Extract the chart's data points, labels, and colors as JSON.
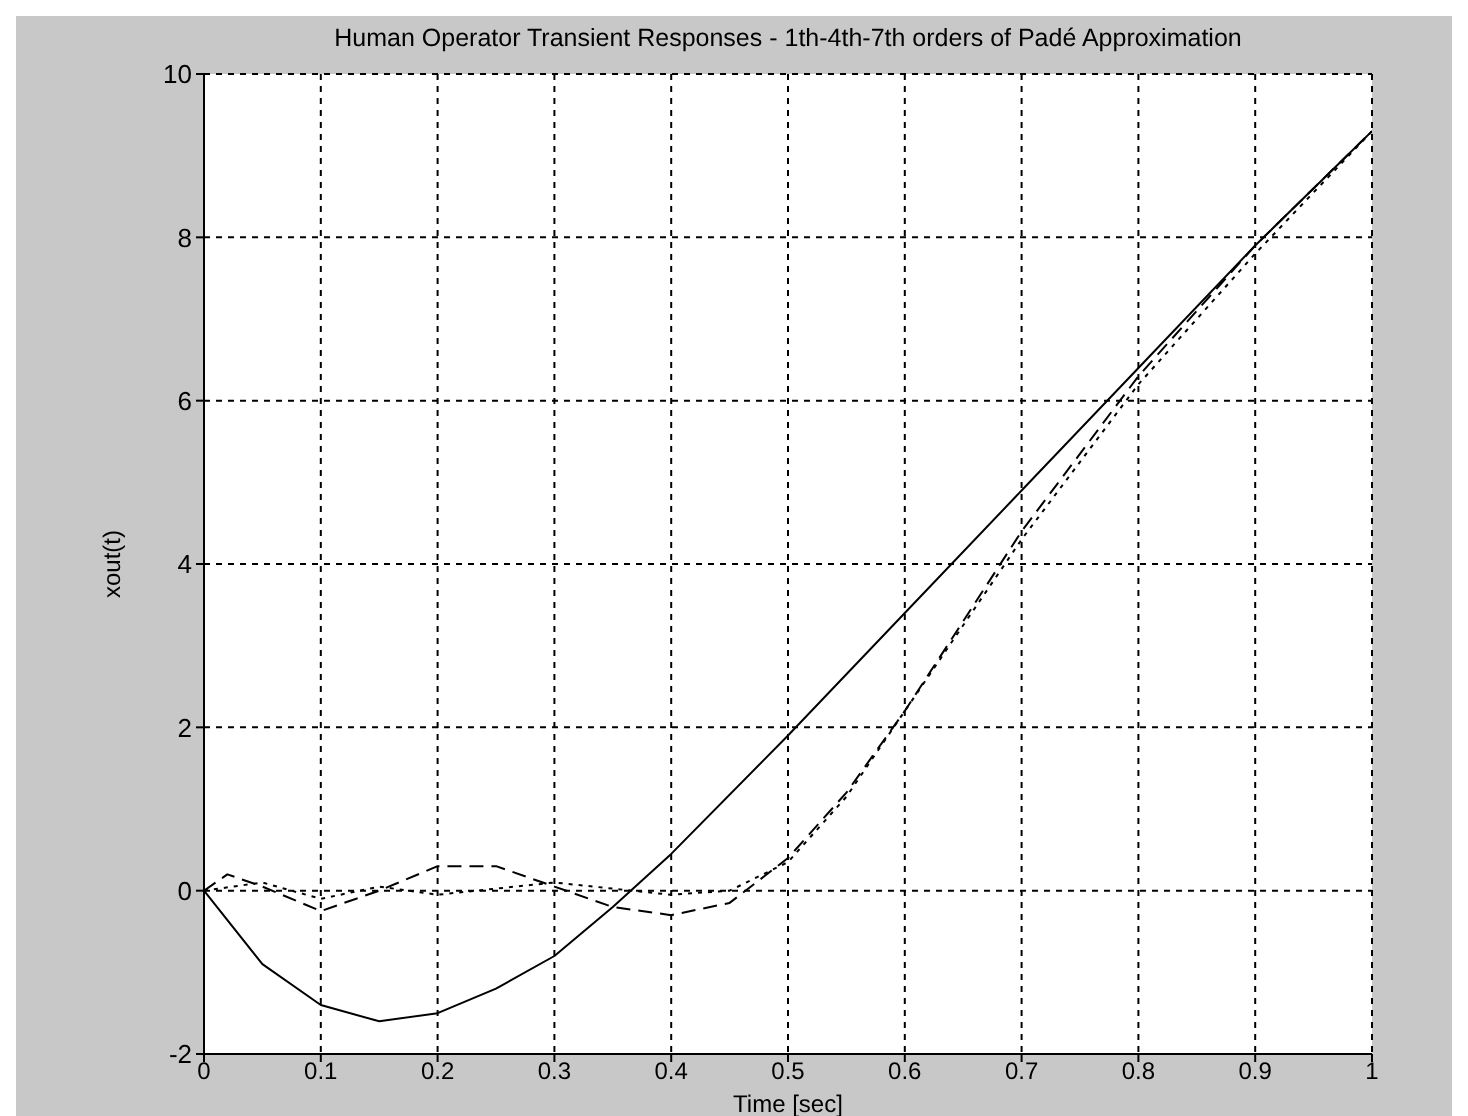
{
  "chart_data": {
    "type": "line",
    "title": "Human Operator Transient Responses - 1th-4th-7th orders of Padé Approximation",
    "xlabel": "Time [sec]",
    "ylabel": "xout(t)",
    "xlim": [
      0,
      1
    ],
    "ylim": [
      -2,
      10
    ],
    "xticks": [
      0,
      0.1,
      0.2,
      0.3,
      0.4,
      0.5,
      0.6,
      0.7,
      0.8,
      0.9,
      1
    ],
    "yticks": [
      -2,
      0,
      2,
      4,
      6,
      8,
      10
    ],
    "grid": true,
    "marker": "none",
    "series": [
      {
        "color": "#000000",
        "line_style": "solid",
        "x": [
          0,
          0.05,
          0.1,
          0.15,
          0.2,
          0.25,
          0.3,
          0.35,
          0.4,
          0.5,
          0.6,
          0.7,
          0.8,
          0.9,
          1
        ],
        "values": [
          0,
          -0.9,
          -1.4,
          -1.6,
          -1.5,
          -1.2,
          -0.8,
          -0.2,
          0.45,
          1.9,
          3.4,
          4.9,
          6.4,
          7.9,
          9.3
        ]
      },
      {
        "color": "#000000",
        "line_style": "dashed",
        "x": [
          0,
          0.02,
          0.05,
          0.1,
          0.15,
          0.2,
          0.25,
          0.3,
          0.35,
          0.4,
          0.45,
          0.5,
          0.55,
          0.6,
          0.7,
          0.8,
          0.9,
          1
        ],
        "values": [
          0,
          0.2,
          0.05,
          -0.25,
          0,
          0.3,
          0.3,
          0.05,
          -0.2,
          -0.3,
          -0.15,
          0.4,
          1.2,
          2.2,
          4.4,
          6.3,
          7.9,
          9.3
        ]
      },
      {
        "color": "#000000",
        "line_style": "dotted",
        "x": [
          0,
          0.05,
          0.1,
          0.15,
          0.2,
          0.3,
          0.4,
          0.45,
          0.5,
          0.55,
          0.6,
          0.7,
          0.8,
          0.9,
          1
        ],
        "values": [
          0,
          0.1,
          -0.1,
          0.05,
          -0.05,
          0.1,
          -0.05,
          0,
          0.35,
          1.15,
          2.2,
          4.3,
          6.2,
          7.8,
          9.3
        ]
      }
    ]
  }
}
